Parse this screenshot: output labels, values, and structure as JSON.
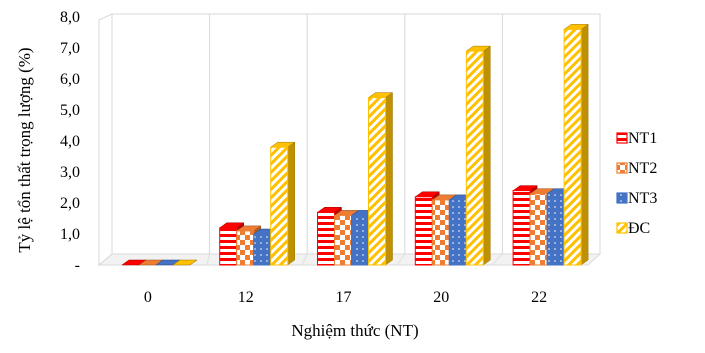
{
  "chart_data": {
    "type": "bar",
    "title": "",
    "xlabel": "Nghiệm thức (NT)",
    "ylabel": "Tỷ lệ tổn thất trọng lượng (%)",
    "categories": [
      "0",
      "12",
      "17",
      "20",
      "22"
    ],
    "ylim": [
      0,
      8
    ],
    "yticks": [
      "-",
      "1,0",
      "2,0",
      "3,0",
      "4,0",
      "5,0",
      "6,0",
      "7,0",
      "8,0"
    ],
    "grid": "vertical lines between categories",
    "legend_position": "right",
    "series": [
      {
        "name": "NT1",
        "values": [
          0,
          1.2,
          1.7,
          2.2,
          2.4
        ],
        "color": "#ff0000",
        "pattern": "horizontal-stripes"
      },
      {
        "name": "NT2",
        "values": [
          0,
          1.1,
          1.6,
          2.1,
          2.3
        ],
        "color": "#ee7d31",
        "pattern": "checkerboard"
      },
      {
        "name": "NT3",
        "values": [
          0,
          1.0,
          1.6,
          2.1,
          2.3
        ],
        "color": "#4472c4",
        "pattern": "dotted"
      },
      {
        "name": "ĐC",
        "values": [
          0,
          3.8,
          5.4,
          6.9,
          7.6
        ],
        "color": "#ffc000",
        "pattern": "diagonal-stripes"
      }
    ]
  }
}
